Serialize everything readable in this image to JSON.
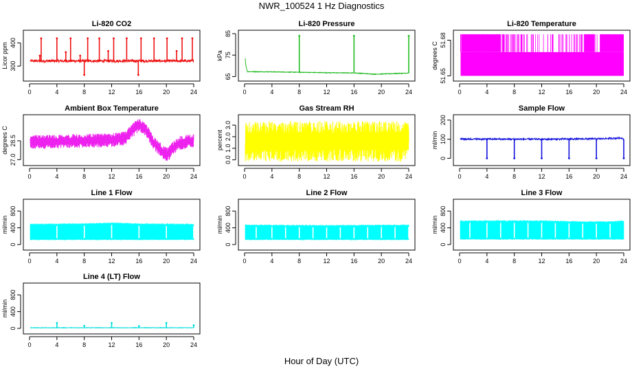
{
  "figure": {
    "title": "NWR_100524  1 Hz Diagnostics",
    "xlabel": "Hour of Day (UTC)"
  },
  "chart_data": [
    {
      "type": "line",
      "title": "Li-820 CO2",
      "ylabel": "Licor ppm",
      "color": "#ee1111",
      "xlim": [
        0,
        24
      ],
      "ylim": [
        250,
        440
      ],
      "xticks": [
        "0",
        "4",
        "8",
        "12",
        "16",
        "20",
        "24"
      ],
      "yticks": [
        {
          "value": 300,
          "label": "300"
        },
        {
          "value": 400,
          "label": "400"
        }
      ],
      "base": 322,
      "noise": 6,
      "band": false,
      "spikes": [
        {
          "x": 1.5,
          "y": 345
        },
        {
          "x": 1.7,
          "y": 420
        },
        {
          "x": 4.0,
          "y": 420
        },
        {
          "x": 5.3,
          "y": 360
        },
        {
          "x": 6.0,
          "y": 420
        },
        {
          "x": 7.4,
          "y": 345
        },
        {
          "x": 8.0,
          "y": 262
        },
        {
          "x": 8.5,
          "y": 420
        },
        {
          "x": 10.2,
          "y": 420
        },
        {
          "x": 11.5,
          "y": 365
        },
        {
          "x": 12.3,
          "y": 420
        },
        {
          "x": 14.2,
          "y": 420
        },
        {
          "x": 15.9,
          "y": 262
        },
        {
          "x": 16.3,
          "y": 420
        },
        {
          "x": 18.2,
          "y": 420
        },
        {
          "x": 20.1,
          "y": 420
        },
        {
          "x": 21.5,
          "y": 365
        },
        {
          "x": 22.3,
          "y": 420
        },
        {
          "x": 23.8,
          "y": 420
        }
      ]
    },
    {
      "type": "line",
      "title": "Li-820 Pressure",
      "ylabel": "kPa",
      "color": "#22bb22",
      "xlim": [
        0,
        24
      ],
      "ylim": [
        64.5,
        85
      ],
      "xticks": [
        "0",
        "4",
        "8",
        "12",
        "16",
        "20",
        "24"
      ],
      "yticks": [
        {
          "value": 65,
          "label": "65"
        },
        {
          "value": 75,
          "label": "75"
        },
        {
          "value": 85,
          "label": "85"
        }
      ],
      "trend": [
        [
          0,
          78.5
        ],
        [
          0.15,
          71
        ],
        [
          0.4,
          67.3
        ],
        [
          4,
          67.2
        ],
        [
          8,
          67.0
        ],
        [
          12,
          66.8
        ],
        [
          16,
          66.7
        ],
        [
          19,
          66.1
        ],
        [
          22,
          66.4
        ],
        [
          24,
          66.6
        ]
      ],
      "noise": 0.15,
      "band": false,
      "spikes": [
        {
          "x": 8.0,
          "y": 84
        },
        {
          "x": 16.0,
          "y": 84
        },
        {
          "x": 24.0,
          "y": 84
        }
      ]
    },
    {
      "type": "area",
      "title": "Li-820 Temperature",
      "ylabel": "degrees C",
      "color": "#ff00ff",
      "xlim": [
        0,
        24
      ],
      "ylim": [
        51.6485,
        51.6855
      ],
      "xticks": [
        "0",
        "4",
        "8",
        "12",
        "16",
        "20",
        "24"
      ],
      "yticks": [
        {
          "value": 51.65,
          "label": "51.65"
        },
        {
          "value": 51.68,
          "label": "51.68"
        }
      ],
      "levels": [
        51.65,
        51.67,
        51.685
      ],
      "solid_to": 51.67,
      "band": true,
      "dense_ranges": [
        [
          0.3,
          6.0
        ],
        [
          18.2,
          19.6
        ],
        [
          20.5,
          24.0
        ]
      ]
    },
    {
      "type": "line",
      "title": "Ambient Box Temperature",
      "ylabel": "degrees C",
      "color": "#ee22ee",
      "xlim": [
        0,
        24
      ],
      "ylim": [
        26.8,
        30.3
      ],
      "xticks": [
        "0",
        "4",
        "8",
        "12",
        "16",
        "20",
        "24"
      ],
      "yticks": [
        {
          "value": 27.0,
          "label": "27.0"
        },
        {
          "value": 28.5,
          "label": "28.5"
        }
      ],
      "trend": [
        [
          0,
          28.4
        ],
        [
          4,
          28.45
        ],
        [
          8,
          28.5
        ],
        [
          12,
          28.55
        ],
        [
          14,
          28.7
        ],
        [
          15.2,
          29.4
        ],
        [
          16,
          29.75
        ],
        [
          17,
          29.4
        ],
        [
          18,
          28.4
        ],
        [
          19.5,
          27.6
        ],
        [
          20.2,
          27.4
        ],
        [
          21,
          27.9
        ],
        [
          22,
          28.35
        ],
        [
          24,
          28.5
        ]
      ],
      "noise": 0.55,
      "band": true
    },
    {
      "type": "line",
      "title": "Gas Stream RH",
      "ylabel": "percent",
      "color": "#ffff00",
      "xlim": [
        0,
        24
      ],
      "ylim": [
        -0.2,
        3.6
      ],
      "xticks": [
        "0",
        "4",
        "8",
        "12",
        "16",
        "20",
        "24"
      ],
      "yticks": [
        {
          "value": 0.0,
          "label": "0.0"
        },
        {
          "value": 1.0,
          "label": "1.0"
        },
        {
          "value": 2.0,
          "label": "2.0"
        },
        {
          "value": 3.0,
          "label": "3.0"
        }
      ],
      "trend": [
        [
          0,
          1.6
        ],
        [
          24,
          1.6
        ]
      ],
      "noise": 1.75,
      "band": true
    },
    {
      "type": "line",
      "title": "Sample Flow",
      "ylabel": "ml/min",
      "color": "#1111dd",
      "xlim": [
        0,
        24
      ],
      "ylim": [
        -20,
        210
      ],
      "xticks": [
        "0",
        "4",
        "8",
        "12",
        "16",
        "20",
        "24"
      ],
      "yticks": [
        {
          "value": 0,
          "label": "0"
        },
        {
          "value": 100,
          "label": "100"
        },
        {
          "value": 200,
          "label": "200"
        }
      ],
      "trend": [
        [
          0,
          101
        ],
        [
          12,
          100
        ],
        [
          20,
          102
        ],
        [
          23.8,
          106
        ],
        [
          24,
          100
        ]
      ],
      "noise": 4,
      "band": false,
      "spikes": [
        {
          "x": 4.0,
          "y": 0
        },
        {
          "x": 8.0,
          "y": 0
        },
        {
          "x": 12.0,
          "y": 0
        },
        {
          "x": 16.0,
          "y": 0
        },
        {
          "x": 20.0,
          "y": 0
        },
        {
          "x": 24.0,
          "y": 0
        }
      ]
    },
    {
      "type": "area",
      "title": "Line 1 Flow",
      "ylabel": "ml/min",
      "color": "#00ffff",
      "xlim": [
        0,
        24
      ],
      "ylim": [
        -50,
        1000
      ],
      "xticks": [
        "0",
        "4",
        "8",
        "12",
        "16",
        "20",
        "24"
      ],
      "yticks": [
        {
          "value": 0,
          "label": "0"
        },
        {
          "value": 400,
          "label": "400"
        },
        {
          "value": 800,
          "label": "800"
        }
      ],
      "lower": [
        [
          0,
          120
        ],
        [
          24,
          120
        ]
      ],
      "upper": [
        [
          0,
          480
        ],
        [
          8,
          490
        ],
        [
          12,
          510
        ],
        [
          16,
          490
        ],
        [
          24,
          480
        ]
      ],
      "gaps": [
        4.0,
        8.0,
        12.0,
        16.0,
        20.0,
        24.0
      ],
      "band": true
    },
    {
      "type": "area",
      "title": "Line 2 Flow",
      "ylabel": "ml/min",
      "color": "#00ffff",
      "xlim": [
        0,
        24
      ],
      "ylim": [
        -50,
        1000
      ],
      "xticks": [
        "0",
        "4",
        "8",
        "12",
        "16",
        "20",
        "24"
      ],
      "yticks": [
        {
          "value": 0,
          "label": "0"
        },
        {
          "value": 400,
          "label": "400"
        },
        {
          "value": 800,
          "label": "800"
        }
      ],
      "lower": [
        [
          0,
          120
        ],
        [
          24,
          120
        ]
      ],
      "upper": [
        [
          0,
          460
        ],
        [
          12,
          450
        ],
        [
          24,
          460
        ]
      ],
      "gaps": [
        1.7,
        4.0,
        6.0,
        8.0,
        10.0,
        12.0,
        14.0,
        16.0,
        18.0,
        20.0,
        22.0,
        24.0
      ],
      "band": true
    },
    {
      "type": "area",
      "title": "Line 3 Flow",
      "ylabel": "ml/min",
      "color": "#00ffff",
      "xlim": [
        0,
        24
      ],
      "ylim": [
        -50,
        1000
      ],
      "xticks": [
        "0",
        "4",
        "8",
        "12",
        "16",
        "20",
        "24"
      ],
      "yticks": [
        {
          "value": 0,
          "label": "0"
        },
        {
          "value": 400,
          "label": "400"
        },
        {
          "value": 800,
          "label": "800"
        }
      ],
      "lower": [
        [
          0,
          130
        ],
        [
          24,
          130
        ]
      ],
      "upper": [
        [
          0,
          560
        ],
        [
          12,
          560
        ],
        [
          18,
          540
        ],
        [
          22,
          540
        ],
        [
          24,
          560
        ]
      ],
      "gaps": [
        1.5,
        4.0,
        6.0,
        8.0,
        10.0,
        12.0,
        14.0,
        16.0,
        18.0,
        20.0,
        22.0
      ],
      "band": true
    },
    {
      "type": "line",
      "title": "Line 4 (LT) Flow",
      "ylabel": "ml/min",
      "color": "#00dddd",
      "xlim": [
        0,
        24
      ],
      "ylim": [
        -50,
        1000
      ],
      "xticks": [
        "0",
        "4",
        "8",
        "12",
        "16",
        "20",
        "24"
      ],
      "yticks": [
        {
          "value": 0,
          "label": "0"
        },
        {
          "value": 400,
          "label": "400"
        },
        {
          "value": 800,
          "label": "800"
        }
      ],
      "trend": [
        [
          0,
          15
        ],
        [
          24,
          15
        ]
      ],
      "noise": 6,
      "band": false,
      "spikes": [
        {
          "x": 4.0,
          "y": 130
        },
        {
          "x": 8.0,
          "y": 60
        },
        {
          "x": 12.0,
          "y": 130
        },
        {
          "x": 16.0,
          "y": 55
        },
        {
          "x": 20.0,
          "y": 130
        },
        {
          "x": 24.0,
          "y": 75
        }
      ]
    }
  ]
}
